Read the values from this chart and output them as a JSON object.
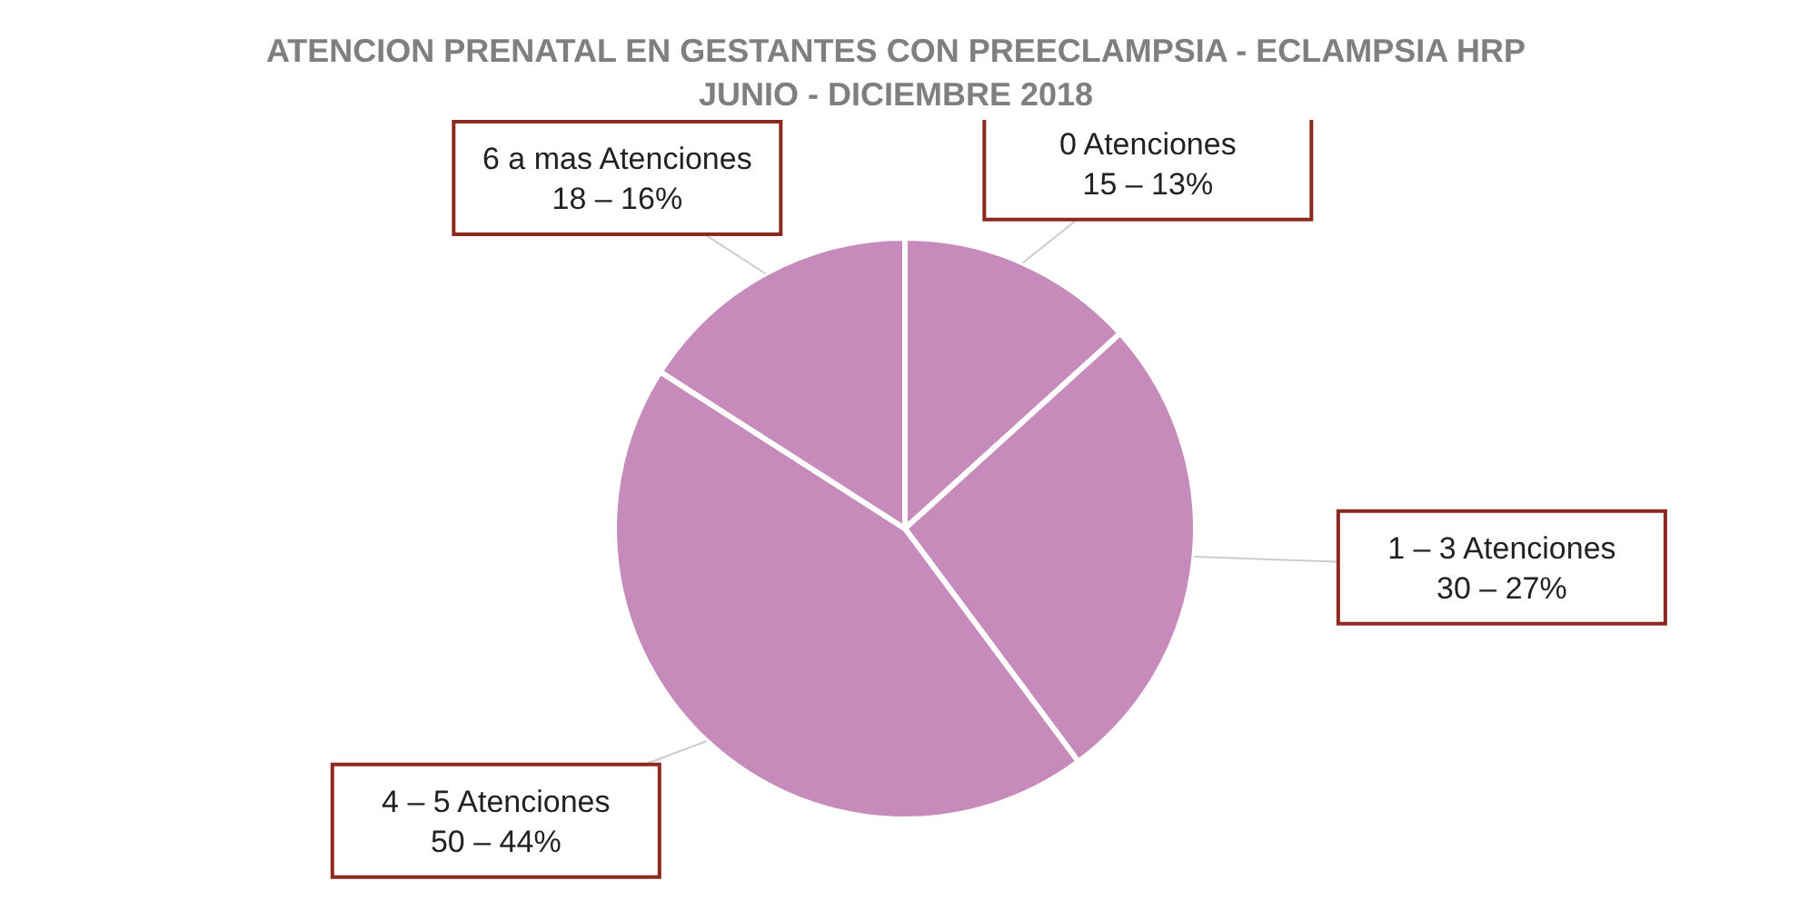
{
  "chart_data": {
    "type": "pie",
    "title": "ATENCION PRENATAL EN GESTANTES CON PREECLAMPSIA - ECLAMPSIA HRP JUNIO - DICIEMBRE 2018",
    "categories": [
      "0 Atenciones",
      "1 – 3 Atenciones",
      "4 – 5 Atenciones",
      "6 a mas Atenciones"
    ],
    "values": [
      15,
      30,
      50,
      18
    ],
    "value_labels": [
      "15 – 13%",
      "30 – 27%",
      "50 – 44%",
      "18 – 16%"
    ],
    "colors": [
      "#c78bbb",
      "#c78bbb",
      "#c78bbb",
      "#c78bbb"
    ],
    "legend": false
  }
}
